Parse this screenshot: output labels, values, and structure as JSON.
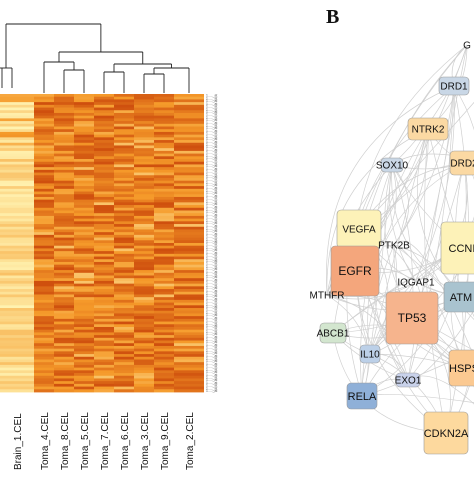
{
  "figure": {
    "panel_b_label": "B"
  },
  "heatmap": {
    "columns": [
      "Brain_1.CEL",
      "Toma_4.CEL",
      "Toma_8.CEL",
      "Toma_5.CEL",
      "Toma_7.CEL",
      "Toma_6.CEL",
      "Toma_3.CEL",
      "Toma_9.CEL",
      "Toma_2.CEL"
    ],
    "row_count": 110,
    "row_label_pattern": "1....._at",
    "colors": {
      "high": "#fff2b0",
      "mid": "#f59a2a",
      "low": "#c74008"
    }
  },
  "network": {
    "nodes": [
      {
        "label": "G",
        "color": "#ffffff"
      },
      {
        "label": "DRD1",
        "color": "#c9d7e6"
      },
      {
        "label": "NTRK2",
        "color": "#fbd9a3"
      },
      {
        "label": "DRD2",
        "color": "#fbd9a3"
      },
      {
        "label": "SOX10",
        "color": "#c9d7e6"
      },
      {
        "label": "VEGFA",
        "color": "#fdf2b8"
      },
      {
        "label": "PTK2B",
        "color": "#ffffff"
      },
      {
        "label": "EGFR",
        "color": "#f4a67c"
      },
      {
        "label": "CCNI",
        "color": "#fdf2b8"
      },
      {
        "label": "IQGAP1",
        "color": "#ffffff"
      },
      {
        "label": "MTHFR",
        "color": "#ffffff"
      },
      {
        "label": "ATM",
        "color": "#a9c3cf"
      },
      {
        "label": "TP53",
        "color": "#f6b48d"
      },
      {
        "label": "ABCB1",
        "color": "#d3e6cf"
      },
      {
        "label": "IL10",
        "color": "#bcd0e8"
      },
      {
        "label": "HSPS",
        "color": "#fbc991"
      },
      {
        "label": "EXO1",
        "color": "#c8d1ea"
      },
      {
        "label": "RELA",
        "color": "#8fb0d8"
      },
      {
        "label": "CDKN2A",
        "color": "#fdd99e"
      }
    ],
    "edge_color": "#c8c8c8"
  }
}
